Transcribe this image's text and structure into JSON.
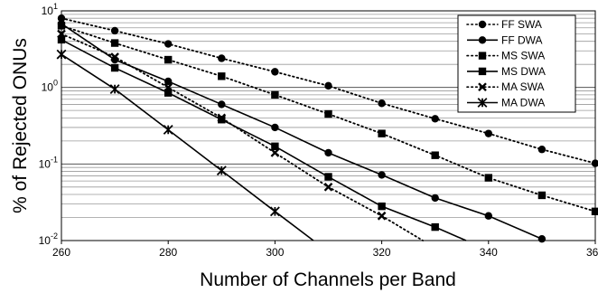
{
  "chart_data": {
    "type": "line",
    "xlabel": "Number of Channels per Band",
    "ylabel": "% of Rejected ONUs",
    "xlim": [
      260,
      360
    ],
    "ylim": [
      0.01,
      10
    ],
    "yscale": "log",
    "grid": true,
    "legend_position": "top-right",
    "x_ticks": [
      260,
      280,
      300,
      320,
      340,
      360
    ],
    "y_ticks": [
      {
        "value": 10,
        "base": "10",
        "exp": "1"
      },
      {
        "value": 1,
        "base": "10",
        "exp": "0"
      },
      {
        "value": 0.1,
        "base": "10",
        "exp": "-1"
      },
      {
        "value": 0.01,
        "base": "10",
        "exp": "-2"
      }
    ],
    "series": [
      {
        "name": "FF SWA",
        "line": "dotted",
        "marker": "circle",
        "x": [
          260,
          270,
          280,
          290,
          300,
          310,
          320,
          330,
          340,
          350,
          360
        ],
        "y": [
          8.0,
          5.5,
          3.7,
          2.4,
          1.6,
          1.05,
          0.62,
          0.39,
          0.25,
          0.155,
          0.102
        ]
      },
      {
        "name": "FF DWA",
        "line": "solid",
        "marker": "circle",
        "x": [
          260,
          270,
          280,
          290,
          300,
          310,
          320,
          330,
          340,
          350
        ],
        "y": [
          6.8,
          2.3,
          1.2,
          0.6,
          0.3,
          0.14,
          0.072,
          0.036,
          0.021,
          0.0105
        ]
      },
      {
        "name": "MS SWA",
        "line": "dotted",
        "marker": "square",
        "x": [
          260,
          270,
          280,
          290,
          300,
          310,
          320,
          330,
          340,
          350,
          360
        ],
        "y": [
          6.4,
          3.8,
          2.3,
          1.4,
          0.8,
          0.45,
          0.25,
          0.13,
          0.066,
          0.039,
          0.024
        ]
      },
      {
        "name": "MS DWA",
        "line": "solid",
        "marker": "square",
        "x": [
          260,
          270,
          280,
          290,
          300,
          310,
          320,
          330,
          335.8
        ],
        "y": [
          4.2,
          1.8,
          0.85,
          0.38,
          0.17,
          0.068,
          0.028,
          0.015,
          0.01
        ]
      },
      {
        "name": "MA SWA",
        "line": "dotted",
        "marker": "x",
        "x": [
          260,
          270,
          280,
          290,
          300,
          310,
          320,
          327.7
        ],
        "y": [
          5.0,
          2.5,
          1.0,
          0.4,
          0.14,
          0.05,
          0.021,
          0.01
        ]
      },
      {
        "name": "MA DWA",
        "line": "solid",
        "marker": "star",
        "x": [
          260,
          270,
          280,
          290,
          300,
          307.2
        ],
        "y": [
          2.7,
          0.95,
          0.28,
          0.082,
          0.024,
          0.01
        ]
      }
    ]
  }
}
